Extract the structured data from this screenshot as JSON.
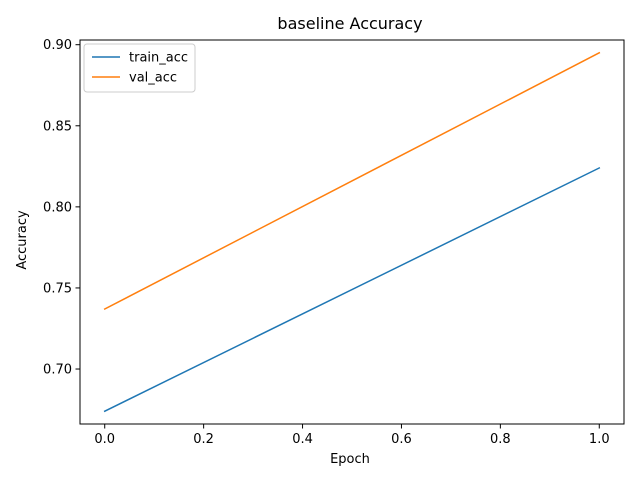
{
  "chart_data": {
    "type": "line",
    "title": "baseline Accuracy",
    "xlabel": "Epoch",
    "ylabel": "Accuracy",
    "x": [
      0,
      1
    ],
    "series": [
      {
        "name": "train_acc",
        "values": [
          0.674,
          0.824
        ],
        "color": "#1f77b4"
      },
      {
        "name": "val_acc",
        "values": [
          0.737,
          0.895
        ],
        "color": "#ff7f0e"
      }
    ],
    "xlim": [
      -0.05,
      1.05
    ],
    "ylim": [
      0.6661,
      0.9029
    ],
    "xticks": [
      0.0,
      0.2,
      0.4,
      0.6,
      0.8,
      1.0
    ],
    "xtick_labels": [
      "0.0",
      "0.2",
      "0.4",
      "0.6",
      "0.8",
      "1.0"
    ],
    "yticks": [
      0.7,
      0.75,
      0.8,
      0.85,
      0.9
    ],
    "ytick_labels": [
      "0.70",
      "0.75",
      "0.80",
      "0.85",
      "0.90"
    ],
    "grid": false,
    "legend_position": "upper-left"
  }
}
